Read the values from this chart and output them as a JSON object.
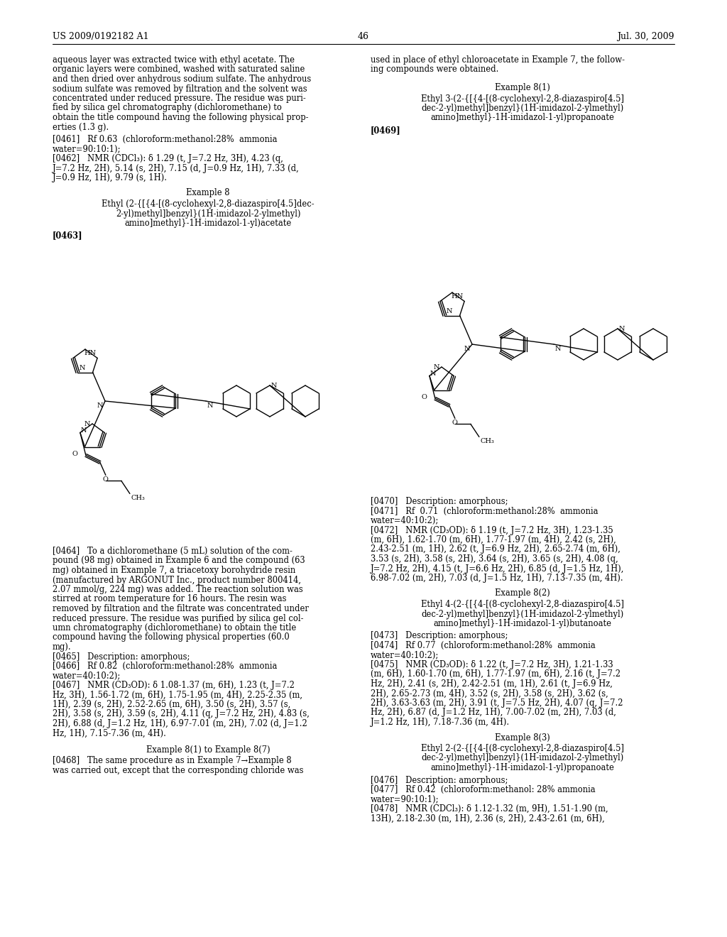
{
  "page_width": 10.24,
  "page_height": 13.2,
  "bg_color": "#ffffff",
  "header_left": "US 2009/0192182 A1",
  "header_right": "Jul. 30, 2009",
  "page_number": "46",
  "left_col_lines": [
    "aqueous layer was extracted twice with ethyl acetate. The",
    "organic layers were combined, washed with saturated saline",
    "and then dried over anhydrous sodium sulfate. The anhydrous",
    "sodium sulfate was removed by filtration and the solvent was",
    "concentrated under reduced pressure. The residue was puri-",
    "fied by silica gel chromatography (dichloromethane) to",
    "obtain the title compound having the following physical prop-",
    "erties (1.3 g)."
  ],
  "left_col_nmr": [
    "[0461]   Rf 0.63  (chloroform:methanol:28%  ammonia",
    "water=90:10:1);",
    "[0462]   NMR (CDCl₃): δ 1.29 (t, J=7.2 Hz, 3H), 4.23 (q,",
    "J=7.2 Hz, 2H), 5.14 (s, 2H), 7.15 (d, J=0.9 Hz, 1H), 7.33 (d,",
    "J=0.9 Hz, 1H), 9.79 (s, 1H)."
  ],
  "right_col_lines": [
    "used in place of ethyl chloroacetate in Example 7, the follow-",
    "ing compounds were obtained."
  ],
  "bottom_left_lines": [
    "[0464]   To a dichloromethane (5 mL) solution of the com-",
    "pound (98 mg) obtained in Example 6 and the compound (63",
    "mg) obtained in Example 7, a triacetoxy borohydride resin",
    "(manufactured by ARGONUT Inc., product number 800414,",
    "2.07 mmol/g, 224 mg) was added. The reaction solution was",
    "stirred at room temperature for 16 hours. The resin was",
    "removed by filtration and the filtrate was concentrated under",
    "reduced pressure. The residue was purified by silica gel col-",
    "umn chromatography (dichloromethane) to obtain the title",
    "compound having the following physical properties (60.0",
    "mg).",
    "[0465]   Description: amorphous;",
    "[0466]   Rf 0.82  (chloroform:methanol:28%  ammonia",
    "water=40:10:2);",
    "[0467]   NMR (CD₃OD): δ 1.08-1.37 (m, 6H), 1.23 (t, J=7.2",
    "Hz, 3H), 1.56-1.72 (m, 6H), 1.75-1.95 (m, 4H), 2.25-2.35 (m,",
    "1H), 2.39 (s, 2H), 2.52-2.65 (m, 6H), 3.50 (s, 2H), 3.57 (s,",
    "2H), 3.58 (s, 2H), 3.59 (s, 2H), 4.11 (q, J=7.2 Hz, 2H), 4.83 (s,",
    "2H), 6.88 (d, J=1.2 Hz, 1H), 6.97-7.01 (m, 2H), 7.02 (d, J=1.2",
    "Hz, 1H), 7.15-7.36 (m, 4H)."
  ],
  "bottom_right_lines_1": [
    "[0473]   Description: amorphous;",
    "[0474]   Rf 0.77  (chloroform:methanol:28%  ammonia",
    "water=40:10:2);",
    "[0475]   NMR (CD₃OD): δ 1.22 (t, J=7.2 Hz, 3H), 1.21-1.33",
    "(m, 6H), 1.60-1.70 (m, 6H), 1.77-1.97 (m, 6H), 2.16 (t, J=7.2",
    "Hz, 2H), 2.41 (s, 2H), 2.42-2.51 (m, 1H), 2.61 (t, J=6.9 Hz,",
    "2H), 2.65-2.73 (m, 4H), 3.52 (s, 2H), 3.58 (s, 2H), 3.62 (s,",
    "2H), 3.63-3.63 (m, 2H), 3.91 (t, J=7.5 Hz, 2H), 4.07 (q, J=7.2",
    "Hz, 2H), 6.87 (d, J=1.2 Hz, 1H), 7.00-7.02 (m, 2H), 7.03 (d,",
    "J=1.2 Hz, 1H), 7.18-7.36 (m, 4H)."
  ],
  "bottom_right_lines_2": [
    "[0476]   Description: amorphous;",
    "[0477]   Rf 0.42  (chloroform:methanol: 28% ammonia",
    "water=90:10:1);",
    "[0478]   NMR (CDCl₃): δ 1.12-1.32 (m, 9H), 1.51-1.90 (m,",
    "13H), 2.18-2.30 (m, 1H), 2.36 (s, 2H), 2.43-2.61 (m, 6H),"
  ],
  "bottom_left_bottom": [
    "Example 8(1) to Example 8(7)",
    "[0468]   The same procedure as in Example 7→Example 8",
    "was carried out, except that the corresponding chloride was"
  ]
}
